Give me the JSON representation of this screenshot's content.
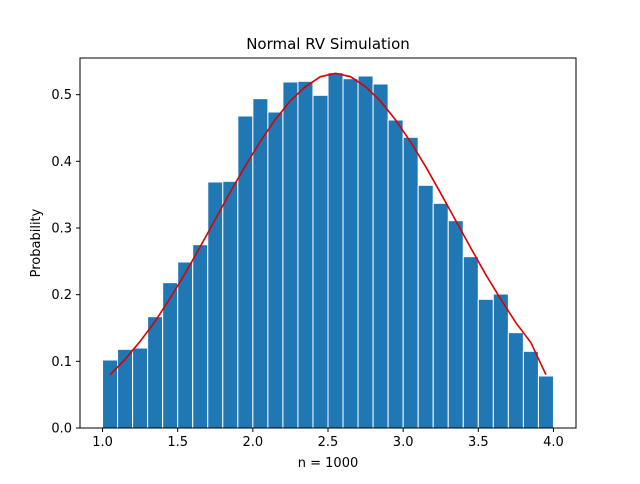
{
  "chart_data": {
    "type": "bar",
    "title": "Normal RV Simulation",
    "xlabel": "n = 1000",
    "ylabel": "Probability",
    "xlim": [
      0.85,
      4.15
    ],
    "ylim": [
      0.0,
      0.555
    ],
    "x_ticks": [
      1.0,
      1.5,
      2.0,
      2.5,
      3.0,
      3.5,
      4.0
    ],
    "x_tick_labels": [
      "1.0",
      "1.5",
      "2.0",
      "2.5",
      "3.0",
      "3.5",
      "4.0"
    ],
    "y_ticks": [
      0.0,
      0.1,
      0.2,
      0.3,
      0.4,
      0.5
    ],
    "y_tick_labels": [
      "0.0",
      "0.1",
      "0.2",
      "0.3",
      "0.4",
      "0.5"
    ],
    "bin_start": 1.0,
    "bin_width": 0.1,
    "histogram_values": [
      0.102,
      0.118,
      0.12,
      0.167,
      0.218,
      0.249,
      0.275,
      0.369,
      0.37,
      0.468,
      0.494,
      0.474,
      0.519,
      0.52,
      0.499,
      0.533,
      0.524,
      0.528,
      0.516,
      0.462,
      0.436,
      0.364,
      0.337,
      0.311,
      0.257,
      0.193,
      0.201,
      0.143,
      0.115,
      0.078
    ],
    "bar_color": "#1f77b4",
    "bar_edge_color": "#ffffff",
    "curve": {
      "color": "#dd0000",
      "x": [
        1.05,
        1.15,
        1.25,
        1.35,
        1.45,
        1.55,
        1.65,
        1.75,
        1.85,
        1.95,
        2.05,
        2.15,
        2.25,
        2.35,
        2.45,
        2.55,
        2.65,
        2.75,
        2.85,
        2.95,
        3.05,
        3.15,
        3.25,
        3.35,
        3.45,
        3.55,
        3.65,
        3.75,
        3.85,
        3.95
      ],
      "y": [
        0.08,
        0.103,
        0.13,
        0.16,
        0.195,
        0.232,
        0.272,
        0.313,
        0.354,
        0.393,
        0.43,
        0.463,
        0.491,
        0.512,
        0.527,
        0.532,
        0.527,
        0.512,
        0.49,
        0.462,
        0.429,
        0.392,
        0.352,
        0.311,
        0.27,
        0.23,
        0.193,
        0.158,
        0.128,
        0.08
      ]
    },
    "grid": false,
    "legend": "none"
  }
}
